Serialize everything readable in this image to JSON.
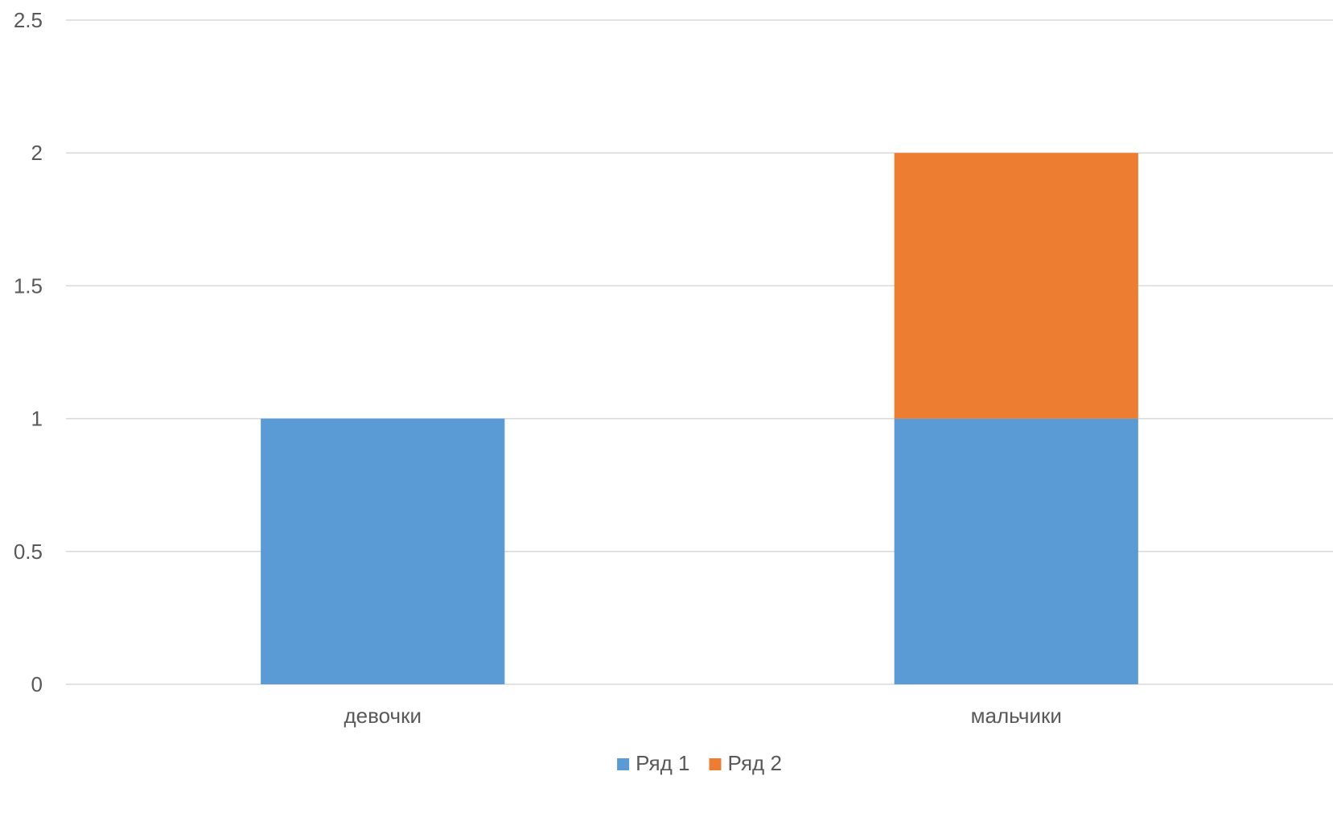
{
  "chart_data": {
    "type": "bar",
    "stacked": true,
    "categories": [
      "девочки",
      "мальчики"
    ],
    "series": [
      {
        "name": "Ряд 1",
        "values": [
          1,
          1
        ],
        "color": "#5b9bd5"
      },
      {
        "name": "Ряд 2",
        "values": [
          0,
          1
        ],
        "color": "#ed7d31"
      }
    ],
    "ylim": [
      0,
      2.5
    ],
    "yticks": [
      "0",
      "0.5",
      "1",
      "1.5",
      "2",
      "2.5"
    ],
    "grid": true,
    "legend_position": "bottom"
  }
}
